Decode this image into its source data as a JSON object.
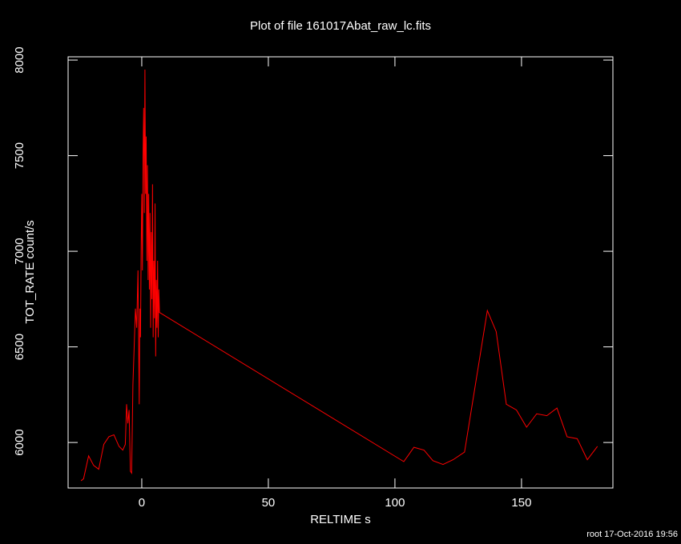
{
  "chart_data": {
    "type": "line",
    "title": "Plot of file 161017Abat_raw_lc.fits",
    "x_label": "RELTIME  s",
    "y_label": "TOT_RATE  count/s",
    "footer": "root 17-Oct-2016 19:56",
    "xlim": [
      -29.1,
      186.1
    ],
    "ylim": [
      5762,
      8017
    ],
    "xticks": [
      0,
      50,
      100,
      150
    ],
    "yticks": [
      6000,
      6500,
      7000,
      7500,
      8000
    ],
    "series": [
      {
        "color": "#ff0000",
        "x": [
          -24,
          -23,
          -21,
          -19,
          -17,
          -15,
          -13,
          -11,
          -9,
          -7.5,
          -6.5,
          -6,
          -5.5,
          -5,
          -4.5,
          -4,
          -3.5,
          -3,
          -2.5,
          -2,
          -1.5,
          -1.0,
          -0.75,
          -0.5,
          -0.25,
          0,
          0.25,
          0.5,
          0.75,
          1.0,
          1.25,
          1.5,
          1.75,
          2.0,
          2.25,
          2.5,
          2.75,
          3.0,
          3.25,
          3.5,
          3.75,
          4.0,
          4.25,
          4.5,
          4.75,
          5.0,
          5.25,
          5.5,
          5.75,
          6.0,
          6.25,
          6.5,
          6.75,
          7.0,
          103.5,
          107.5,
          111.5,
          115,
          119,
          123,
          127.5,
          136.5,
          140,
          144,
          148,
          152,
          156,
          160,
          164,
          168,
          172,
          176,
          180
        ],
        "values": [
          5800,
          5810,
          5930,
          5880,
          5860,
          5990,
          6030,
          6040,
          5980,
          5960,
          5990,
          6200,
          6100,
          6170,
          5850,
          5840,
          6300,
          6500,
          6700,
          6600,
          6900,
          6200,
          6700,
          6550,
          7000,
          7300,
          6900,
          7500,
          7750,
          7200,
          7950,
          7300,
          7600,
          6950,
          7450,
          6850,
          7300,
          6800,
          7200,
          6600,
          7100,
          6750,
          7350,
          6550,
          6950,
          6650,
          7250,
          6450,
          6850,
          6600,
          6950,
          6550,
          6800,
          6680,
          5900,
          5975,
          5960,
          5905,
          5885,
          5910,
          5950,
          6690,
          6580,
          6200,
          6170,
          6080,
          6150,
          6140,
          6180,
          6030,
          6020,
          5910,
          5980
        ]
      }
    ]
  }
}
